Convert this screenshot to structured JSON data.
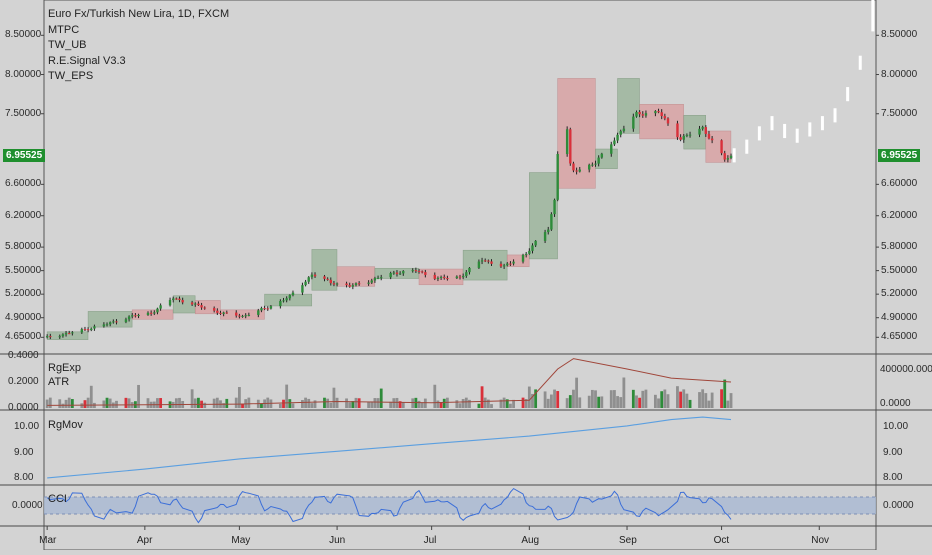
{
  "legend": {
    "title": "Euro Fx/Turkish New Lira, 1D, FXCM",
    "indicators": [
      "MTPC",
      "TW_UB",
      "R.E.Signal V3.3",
      "TW_EPS"
    ]
  },
  "price_axis": {
    "labels": [
      "8.50000",
      "8.00000",
      "7.50000",
      "6.95525",
      "6.60000",
      "6.20000",
      "5.80000",
      "5.50000",
      "5.20000",
      "4.90000",
      "4.65000"
    ],
    "last": "6.95525"
  },
  "volume_panel": {
    "names": [
      "RgExp",
      "ATR"
    ],
    "left_labels": [
      "0.4000",
      "0.2000",
      "0.0000"
    ],
    "right_labels": [
      "400000.0000",
      "0.0000"
    ]
  },
  "rgmov_panel": {
    "name": "RgMov",
    "labels": [
      "10.00",
      "9.00",
      "8.00"
    ]
  },
  "cci_panel": {
    "name": "CCI",
    "labels": [
      "0.0000"
    ]
  },
  "months": [
    "Mar",
    "Apr",
    "May",
    "Jun",
    "Jul",
    "Aug",
    "Sep",
    "Oct",
    "Nov"
  ],
  "colors": {
    "background": "#d3d3d3",
    "up": "#2e8b3a",
    "down": "#d9303a",
    "up_box": "#9db69d",
    "down_box": "#d9a3a5",
    "projection": "#ffffff",
    "rgmov_line": "#5b9fe0",
    "cci_line": "#3c6fd8",
    "cci_band": "#a9b9d3",
    "atr_line": "#a0463a",
    "last_badge": "#1f8f2e"
  },
  "chart_data": [
    {
      "type": "candlestick",
      "title": "Euro Fx/Turkish New Lira, 1D, FXCM",
      "ylim": [
        4.45,
        8.95
      ],
      "last_price": 6.95525,
      "x_range": [
        "2018-02-28",
        "2018-11-19"
      ],
      "ticks": {
        "Mar": "2018-03-01",
        "Apr": "2018-04-01",
        "May": "2018-05-01",
        "Jun": "2018-06-01",
        "Jul": "2018-07-01",
        "Aug": "2018-08-01",
        "Sep": "2018-09-01",
        "Oct": "2018-10-01",
        "Nov": "2018-11-01"
      },
      "close_path": [
        [
          "2018-03-01",
          4.65
        ],
        [
          "2018-03-10",
          4.72
        ],
        [
          "2018-03-20",
          4.82
        ],
        [
          "2018-03-28",
          4.92
        ],
        [
          "2018-04-03",
          4.96
        ],
        [
          "2018-04-10",
          5.15
        ],
        [
          "2018-04-18",
          5.05
        ],
        [
          "2018-04-25",
          4.96
        ],
        [
          "2018-05-02",
          4.92
        ],
        [
          "2018-05-10",
          5.03
        ],
        [
          "2018-05-17",
          5.17
        ],
        [
          "2018-05-24",
          5.45
        ],
        [
          "2018-05-30",
          5.35
        ],
        [
          "2018-06-05",
          5.3
        ],
        [
          "2018-06-12",
          5.38
        ],
        [
          "2018-06-19",
          5.47
        ],
        [
          "2018-06-26",
          5.5
        ],
        [
          "2018-07-03",
          5.4
        ],
        [
          "2018-07-10",
          5.42
        ],
        [
          "2018-07-17",
          5.64
        ],
        [
          "2018-07-24",
          5.55
        ],
        [
          "2018-07-31",
          5.72
        ],
        [
          "2018-08-07",
          6.04
        ],
        [
          "2018-08-09",
          6.4
        ],
        [
          "2018-08-10",
          7.0
        ],
        [
          "2018-08-13",
          7.3
        ],
        [
          "2018-08-14",
          6.84
        ],
        [
          "2018-08-15",
          6.77
        ],
        [
          "2018-08-22",
          6.87
        ],
        [
          "2018-08-28",
          7.18
        ],
        [
          "2018-09-04",
          7.5
        ],
        [
          "2018-09-11",
          7.52
        ],
        [
          "2018-09-18",
          7.18
        ],
        [
          "2018-09-25",
          7.32
        ],
        [
          "2018-10-02",
          6.92
        ],
        [
          "2018-10-04",
          6.95525
        ]
      ],
      "ohlc_sample_note": "daily candles rendered from close path",
      "boxes": [
        {
          "from": "2018-03-01",
          "to": "2018-03-13",
          "low": 4.62,
          "high": 4.72,
          "dir": "up"
        },
        {
          "from": "2018-03-14",
          "to": "2018-03-27",
          "low": 4.78,
          "high": 4.98,
          "dir": "up"
        },
        {
          "from": "2018-03-28",
          "to": "2018-04-09",
          "low": 4.88,
          "high": 5.0,
          "dir": "down"
        },
        {
          "from": "2018-04-10",
          "to": "2018-04-16",
          "low": 4.96,
          "high": 5.18,
          "dir": "up"
        },
        {
          "from": "2018-04-17",
          "to": "2018-04-24",
          "low": 4.95,
          "high": 5.12,
          "dir": "down"
        },
        {
          "from": "2018-04-25",
          "to": "2018-05-08",
          "low": 4.88,
          "high": 5.0,
          "dir": "down"
        },
        {
          "from": "2018-05-09",
          "to": "2018-05-23",
          "low": 5.05,
          "high": 5.2,
          "dir": "up"
        },
        {
          "from": "2018-05-24",
          "to": "2018-05-31",
          "low": 5.25,
          "high": 5.77,
          "dir": "up"
        },
        {
          "from": "2018-06-01",
          "to": "2018-06-12",
          "low": 5.3,
          "high": 5.55,
          "dir": "down"
        },
        {
          "from": "2018-06-13",
          "to": "2018-06-26",
          "low": 5.4,
          "high": 5.53,
          "dir": "up"
        },
        {
          "from": "2018-06-27",
          "to": "2018-07-10",
          "low": 5.32,
          "high": 5.52,
          "dir": "down"
        },
        {
          "from": "2018-07-11",
          "to": "2018-07-24",
          "low": 5.38,
          "high": 5.76,
          "dir": "up"
        },
        {
          "from": "2018-07-25",
          "to": "2018-07-31",
          "low": 5.55,
          "high": 5.7,
          "dir": "down"
        },
        {
          "from": "2018-08-01",
          "to": "2018-08-09",
          "low": 5.65,
          "high": 6.75,
          "dir": "up"
        },
        {
          "from": "2018-08-10",
          "to": "2018-08-21",
          "low": 6.55,
          "high": 7.95,
          "dir": "down"
        },
        {
          "from": "2018-08-22",
          "to": "2018-08-28",
          "low": 6.8,
          "high": 7.05,
          "dir": "up"
        },
        {
          "from": "2018-08-29",
          "to": "2018-09-04",
          "low": 7.25,
          "high": 7.95,
          "dir": "up"
        },
        {
          "from": "2018-09-05",
          "to": "2018-09-18",
          "low": 7.18,
          "high": 7.62,
          "dir": "down"
        },
        {
          "from": "2018-09-19",
          "to": "2018-09-25",
          "low": 7.05,
          "high": 7.48,
          "dir": "up"
        },
        {
          "from": "2018-09-26",
          "to": "2018-10-03",
          "low": 6.88,
          "high": 7.28,
          "dir": "down"
        }
      ],
      "projection": [
        [
          "2018-10-05",
          6.97
        ],
        [
          "2018-10-09",
          7.08
        ],
        [
          "2018-10-13",
          7.25
        ],
        [
          "2018-10-17",
          7.38
        ],
        [
          "2018-10-21",
          7.28
        ],
        [
          "2018-10-25",
          7.22
        ],
        [
          "2018-10-29",
          7.3
        ],
        [
          "2018-11-02",
          7.38
        ],
        [
          "2018-11-06",
          7.48
        ],
        [
          "2018-11-10",
          7.75
        ],
        [
          "2018-11-14",
          8.15
        ],
        [
          "2018-11-18",
          8.9
        ]
      ]
    },
    {
      "type": "bar",
      "name": "RgExp",
      "ylim_left": [
        0,
        0.4
      ],
      "ylim_right": [
        0,
        400000
      ],
      "note": "volume-style bars, colored green/red on signal days, grey otherwise",
      "atr_path": [
        [
          "2018-03-01",
          0.02
        ],
        [
          "2018-05-01",
          0.03
        ],
        [
          "2018-06-01",
          0.05
        ],
        [
          "2018-07-01",
          0.04
        ],
        [
          "2018-08-01",
          0.06
        ],
        [
          "2018-08-10",
          0.3
        ],
        [
          "2018-08-15",
          0.38
        ],
        [
          "2018-09-01",
          0.3
        ],
        [
          "2018-09-15",
          0.23
        ],
        [
          "2018-10-04",
          0.2
        ]
      ]
    },
    {
      "type": "line",
      "name": "RgMov",
      "ylim": [
        7.8,
        10.6
      ],
      "path": [
        [
          "2018-03-01",
          8.0
        ],
        [
          "2018-04-01",
          8.35
        ],
        [
          "2018-05-01",
          8.75
        ],
        [
          "2018-06-01",
          9.05
        ],
        [
          "2018-07-01",
          9.35
        ],
        [
          "2018-08-01",
          9.65
        ],
        [
          "2018-09-01",
          10.05
        ],
        [
          "2018-09-15",
          10.3
        ],
        [
          "2018-09-25",
          10.4
        ],
        [
          "2018-10-04",
          10.3
        ]
      ]
    },
    {
      "type": "line",
      "name": "CCI",
      "band": [
        -0.3,
        0.3
      ],
      "ylim": [
        -0.65,
        0.65
      ]
    }
  ]
}
